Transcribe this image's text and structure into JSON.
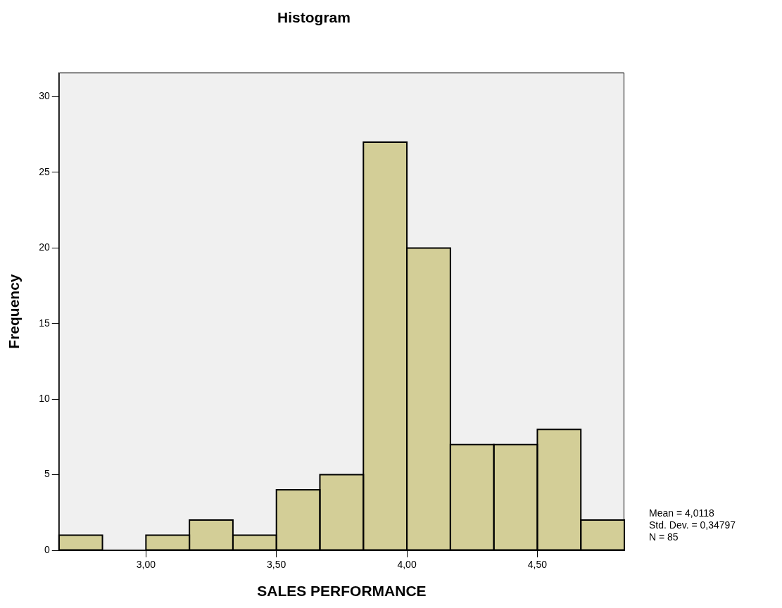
{
  "chart_data": {
    "type": "histogram",
    "title": "Histogram",
    "xlabel": "SALES PERFORMANCE",
    "ylabel": "Frequency",
    "bins": [
      2.6667,
      2.8333,
      3.0,
      3.1667,
      3.3333,
      3.5,
      3.6667,
      3.8333,
      4.0,
      4.1667,
      4.3333,
      4.5,
      4.6667,
      4.8333
    ],
    "values": [
      1,
      0,
      1,
      2,
      1,
      4,
      5,
      27,
      20,
      7,
      7,
      8,
      2
    ],
    "color": "#d3ce97",
    "xlim": [
      2.6667,
      4.8333
    ],
    "xticks": [
      {
        "value": 3,
        "label": "3,00"
      },
      {
        "value": 3.5,
        "label": "3,50"
      },
      {
        "value": 4,
        "label": "4,00"
      },
      {
        "value": 4.5,
        "label": "4,50"
      }
    ],
    "ylim": [
      0,
      31.6
    ],
    "yticks": [
      0,
      5,
      10,
      15,
      20,
      25,
      30
    ],
    "grid": false,
    "legend": false,
    "annotations": [
      "Mean = 4,0118",
      "Std. Dev. = 0,34797",
      "N = 85"
    ]
  }
}
